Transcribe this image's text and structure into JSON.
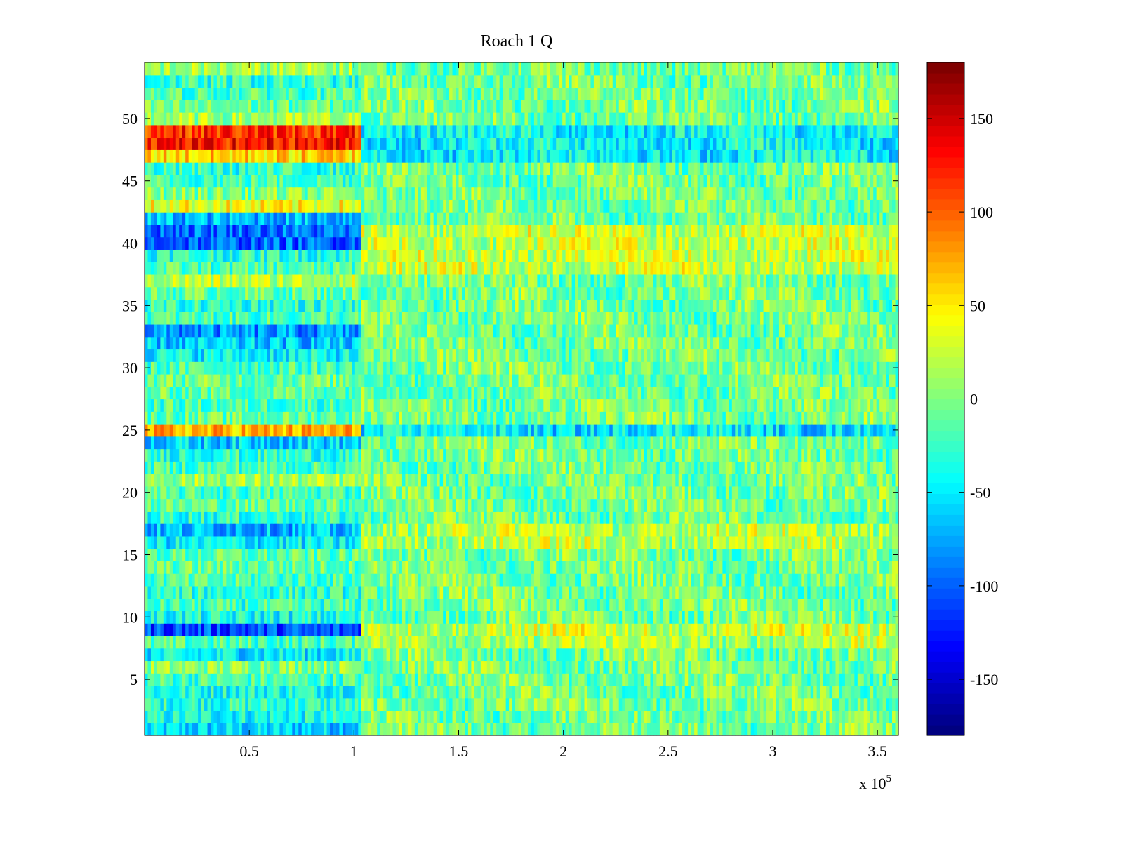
{
  "chart_data": {
    "type": "heatmap",
    "title": "Roach 1 Q",
    "xlabel": "",
    "ylabel": "",
    "x_range": [
      0,
      360000
    ],
    "y_range": [
      0.5,
      54.5
    ],
    "x_ticks": [
      0.5,
      1,
      1.5,
      2,
      2.5,
      3,
      3.5
    ],
    "x_tick_labels": [
      "0.5",
      "1",
      "1.5",
      "2",
      "2.5",
      "3",
      "3.5"
    ],
    "x_exponent_label": "x 10",
    "x_exponent_power": "5",
    "y_ticks": [
      5,
      10,
      15,
      20,
      25,
      30,
      35,
      40,
      45,
      50
    ],
    "y_tick_labels": [
      "5",
      "10",
      "15",
      "20",
      "25",
      "30",
      "35",
      "40",
      "45",
      "50"
    ],
    "n_rows": 54,
    "colormap": "jet",
    "colorbar": {
      "range": [
        -180,
        180
      ],
      "ticks": [
        150,
        100,
        50,
        0,
        -50,
        -100,
        -150
      ],
      "tick_labels": [
        "150",
        "100",
        "50",
        "0",
        "-50",
        "-100",
        "-150"
      ]
    },
    "regime_split_x": 103000,
    "row_levels_before_split": {
      "1": -60,
      "2": -40,
      "3": -30,
      "4": -35,
      "5": -20,
      "6": 5,
      "7": -50,
      "8": -20,
      "9": -110,
      "10": -40,
      "11": -25,
      "12": -30,
      "13": -20,
      "14": -10,
      "15": -15,
      "16": -50,
      "17": -70,
      "18": -30,
      "19": -10,
      "20": -20,
      "21": 10,
      "22": -20,
      "23": -30,
      "24": -60,
      "25": 70,
      "26": -10,
      "27": -20,
      "28": -10,
      "29": -5,
      "30": -20,
      "31": -45,
      "32": -65,
      "33": -85,
      "34": -20,
      "35": -30,
      "36": -10,
      "37": 20,
      "38": -20,
      "39": -30,
      "40": -100,
      "41": -95,
      "42": -70,
      "43": 40,
      "44": 0,
      "45": -20,
      "46": -30,
      "47": 60,
      "48": 130,
      "49": 120,
      "50": 10,
      "51": -10,
      "52": -20,
      "53": -30,
      "54": 10
    },
    "row_levels_after_split": {
      "8": 15,
      "9": 25,
      "16": 20,
      "17": 20,
      "25": -50,
      "38": 25,
      "39": 25,
      "40": 25,
      "41": 25,
      "47": -45,
      "48": -45,
      "49": -45,
      "default": -5
    },
    "noise_amplitude": 35
  }
}
